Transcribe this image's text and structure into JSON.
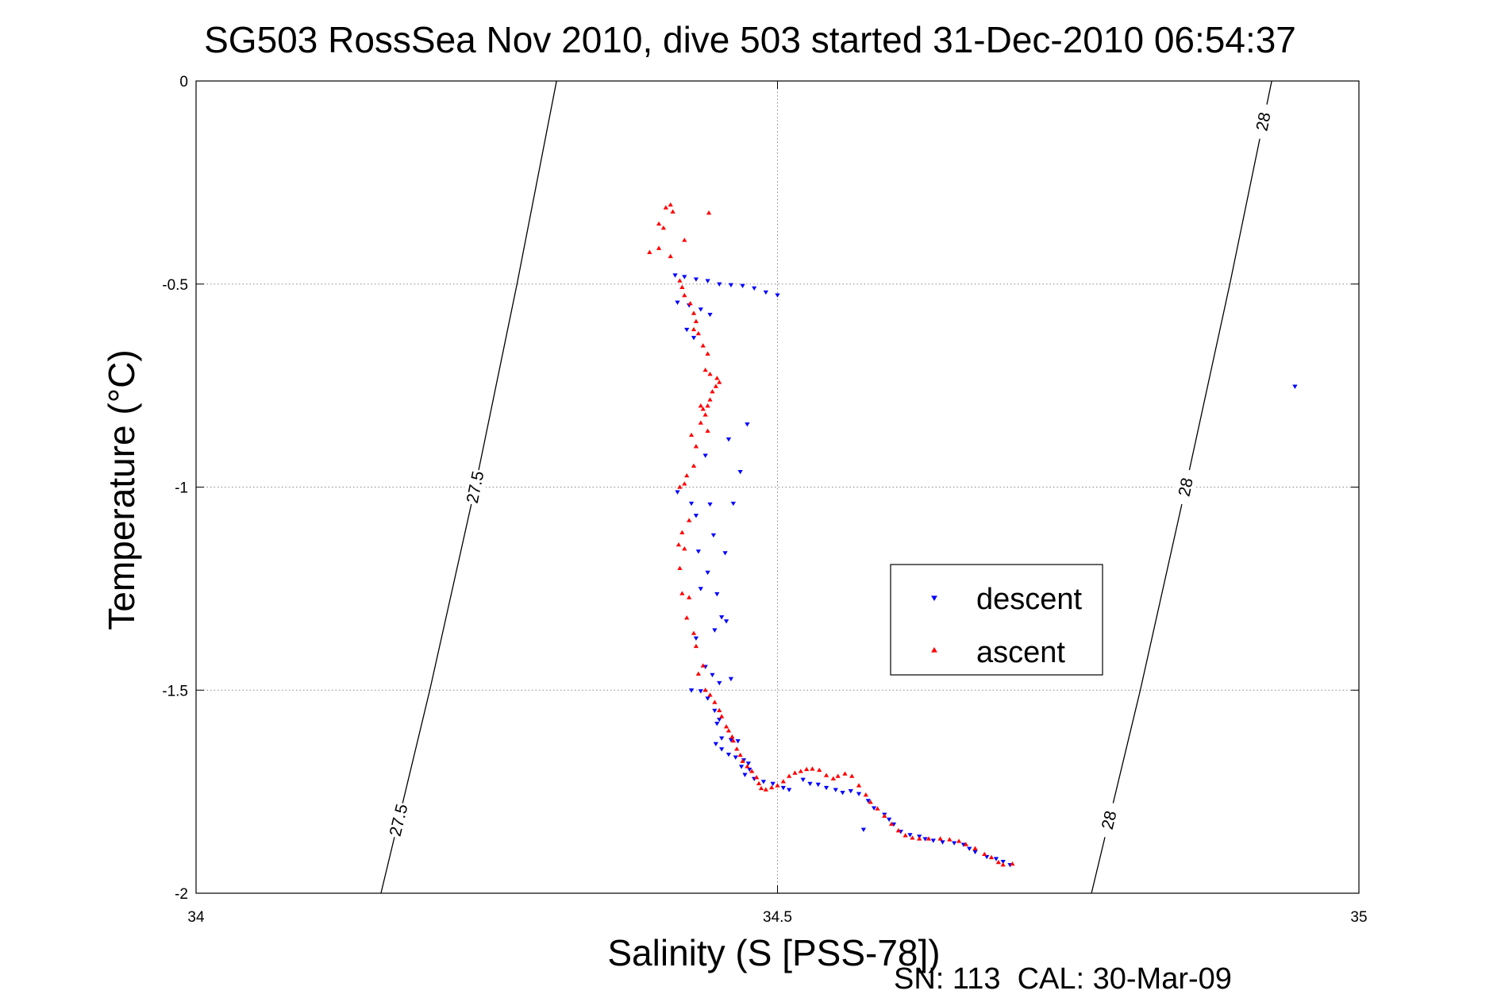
{
  "chart_data": {
    "type": "scatter",
    "title": "SG503 RossSea Nov 2010, dive 503 started 31-Dec-2010 06:54:37",
    "xlabel": "Salinity (S [PSS-78])",
    "ylabel": "Temperature (°C)",
    "xlim": [
      34,
      35
    ],
    "ylim": [
      -2,
      0
    ],
    "xticks": [
      34,
      34.5,
      35
    ],
    "xtick_labels": [
      "34",
      "34.5",
      "35"
    ],
    "yticks": [
      0,
      -0.5,
      -1,
      -1.5,
      -2
    ],
    "ytick_labels": [
      "0",
      "-0.5",
      "-1",
      "-1.5",
      "-2"
    ],
    "grid": true,
    "legend_position": "center-right",
    "footer": "SN: 113  CAL: 30-Mar-09",
    "density_contours": [
      {
        "value": 27.5,
        "points": [
          [
            34.159,
            -2.0
          ],
          [
            34.201,
            -1.5
          ],
          [
            34.24,
            -1.0
          ],
          [
            34.276,
            -0.5
          ],
          [
            34.31,
            0.0
          ]
        ],
        "labels": [
          "27.5",
          "27.5"
        ]
      },
      {
        "value": 28,
        "points": [
          [
            34.77,
            -2.0
          ],
          [
            34.812,
            -1.5
          ],
          [
            34.851,
            -1.0
          ],
          [
            34.889,
            -0.5
          ],
          [
            34.925,
            0.0
          ]
        ],
        "labels": [
          "28",
          "28",
          "28"
        ]
      }
    ],
    "series": [
      {
        "name": "descent",
        "color": "#0000ff",
        "marker": "triangle-down",
        "points": [
          [
            34.412,
            -0.478
          ],
          [
            34.42,
            -0.482
          ],
          [
            34.43,
            -0.488
          ],
          [
            34.44,
            -0.492
          ],
          [
            34.45,
            -0.5
          ],
          [
            34.46,
            -0.502
          ],
          [
            34.47,
            -0.504
          ],
          [
            34.48,
            -0.51
          ],
          [
            34.49,
            -0.52
          ],
          [
            34.5,
            -0.527
          ],
          [
            34.414,
            -0.545
          ],
          [
            34.424,
            -0.552
          ],
          [
            34.434,
            -0.562
          ],
          [
            34.442,
            -0.575
          ],
          [
            34.422,
            -0.612
          ],
          [
            34.428,
            -0.632
          ],
          [
            34.945,
            -0.752
          ],
          [
            34.474,
            -0.845
          ],
          [
            34.458,
            -0.882
          ],
          [
            34.438,
            -0.922
          ],
          [
            34.468,
            -0.962
          ],
          [
            34.414,
            -1.012
          ],
          [
            34.426,
            -1.04
          ],
          [
            34.442,
            -1.042
          ],
          [
            34.462,
            -1.04
          ],
          [
            34.43,
            -1.07
          ],
          [
            34.445,
            -1.118
          ],
          [
            34.432,
            -1.158
          ],
          [
            34.455,
            -1.162
          ],
          [
            34.44,
            -1.21
          ],
          [
            34.434,
            -1.25
          ],
          [
            34.448,
            -1.263
          ],
          [
            34.452,
            -1.32
          ],
          [
            34.456,
            -1.33
          ],
          [
            34.446,
            -1.352
          ],
          [
            34.43,
            -1.372
          ],
          [
            34.438,
            -1.442
          ],
          [
            34.444,
            -1.462
          ],
          [
            34.46,
            -1.472
          ],
          [
            34.45,
            -1.482
          ],
          [
            34.426,
            -1.5
          ],
          [
            34.434,
            -1.502
          ],
          [
            34.44,
            -1.52
          ],
          [
            34.446,
            -1.55
          ],
          [
            34.45,
            -1.572
          ],
          [
            34.448,
            -1.582
          ],
          [
            34.452,
            -1.618
          ],
          [
            34.46,
            -1.622
          ],
          [
            34.466,
            -1.625
          ],
          [
            34.447,
            -1.632
          ],
          [
            34.452,
            -1.645
          ],
          [
            34.458,
            -1.658
          ],
          [
            34.464,
            -1.665
          ],
          [
            34.471,
            -1.672
          ],
          [
            34.475,
            -1.68
          ],
          [
            34.469,
            -1.688
          ],
          [
            34.476,
            -1.695
          ],
          [
            34.472,
            -1.708
          ],
          [
            34.48,
            -1.718
          ],
          [
            34.488,
            -1.725
          ],
          [
            34.496,
            -1.73
          ],
          [
            34.505,
            -1.74
          ],
          [
            34.51,
            -1.745
          ],
          [
            34.522,
            -1.72
          ],
          [
            34.528,
            -1.73
          ],
          [
            34.535,
            -1.732
          ],
          [
            34.542,
            -1.74
          ],
          [
            34.55,
            -1.745
          ],
          [
            34.556,
            -1.752
          ],
          [
            34.563,
            -1.748
          ],
          [
            34.57,
            -1.755
          ],
          [
            34.578,
            -1.772
          ],
          [
            34.583,
            -1.79
          ],
          [
            34.592,
            -1.806
          ],
          [
            34.596,
            -1.818
          ],
          [
            34.6,
            -1.83
          ],
          [
            34.606,
            -1.848
          ],
          [
            34.614,
            -1.856
          ],
          [
            34.622,
            -1.86
          ],
          [
            34.627,
            -1.866
          ],
          [
            34.634,
            -1.87
          ],
          [
            34.642,
            -1.874
          ],
          [
            34.652,
            -1.876
          ],
          [
            34.66,
            -1.88
          ],
          [
            34.665,
            -1.89
          ],
          [
            34.67,
            -1.898
          ],
          [
            34.68,
            -1.91
          ],
          [
            34.688,
            -1.915
          ],
          [
            34.694,
            -1.922
          ],
          [
            34.7,
            -1.93
          ],
          [
            34.574,
            -1.843
          ]
        ]
      },
      {
        "name": "ascent",
        "color": "#ff0000",
        "marker": "triangle-up",
        "points": [
          [
            34.404,
            -0.312
          ],
          [
            34.408,
            -0.305
          ],
          [
            34.41,
            -0.322
          ],
          [
            34.398,
            -0.352
          ],
          [
            34.402,
            -0.362
          ],
          [
            34.441,
            -0.325
          ],
          [
            34.42,
            -0.392
          ],
          [
            34.398,
            -0.412
          ],
          [
            34.39,
            -0.422
          ],
          [
            34.408,
            -0.432
          ],
          [
            34.416,
            -0.492
          ],
          [
            34.418,
            -0.508
          ],
          [
            34.42,
            -0.528
          ],
          [
            34.425,
            -0.548
          ],
          [
            34.428,
            -0.572
          ],
          [
            34.43,
            -0.592
          ],
          [
            34.428,
            -0.612
          ],
          [
            34.432,
            -0.622
          ],
          [
            34.436,
            -0.652
          ],
          [
            34.44,
            -0.672
          ],
          [
            34.438,
            -0.712
          ],
          [
            34.442,
            -0.722
          ],
          [
            34.448,
            -0.732
          ],
          [
            34.45,
            -0.742
          ],
          [
            34.447,
            -0.752
          ],
          [
            34.444,
            -0.765
          ],
          [
            34.442,
            -0.785
          ],
          [
            34.44,
            -0.8
          ],
          [
            34.436,
            -0.808
          ],
          [
            34.434,
            -0.8
          ],
          [
            34.438,
            -0.822
          ],
          [
            34.434,
            -0.842
          ],
          [
            34.44,
            -0.862
          ],
          [
            34.426,
            -0.872
          ],
          [
            34.43,
            -0.9
          ],
          [
            34.428,
            -0.948
          ],
          [
            34.422,
            -0.972
          ],
          [
            34.42,
            -0.992
          ],
          [
            34.416,
            -1.0
          ],
          [
            34.424,
            -1.082
          ],
          [
            34.418,
            -1.112
          ],
          [
            34.415,
            -1.142
          ],
          [
            34.42,
            -1.152
          ],
          [
            34.416,
            -1.2
          ],
          [
            34.418,
            -1.262
          ],
          [
            34.424,
            -1.272
          ],
          [
            34.422,
            -1.322
          ],
          [
            34.428,
            -1.36
          ],
          [
            34.43,
            -1.392
          ],
          [
            34.436,
            -1.44
          ],
          [
            34.432,
            -1.46
          ],
          [
            34.438,
            -1.5
          ],
          [
            34.442,
            -1.512
          ],
          [
            34.446,
            -1.53
          ],
          [
            34.45,
            -1.55
          ],
          [
            34.452,
            -1.565
          ],
          [
            34.456,
            -1.59
          ],
          [
            34.458,
            -1.6
          ],
          [
            34.461,
            -1.615
          ],
          [
            34.462,
            -1.625
          ],
          [
            34.465,
            -1.645
          ],
          [
            34.468,
            -1.66
          ],
          [
            34.47,
            -1.675
          ],
          [
            34.474,
            -1.688
          ],
          [
            34.478,
            -1.7
          ],
          [
            34.482,
            -1.715
          ],
          [
            34.484,
            -1.73
          ],
          [
            34.486,
            -1.742
          ],
          [
            34.49,
            -1.745
          ],
          [
            34.495,
            -1.74
          ],
          [
            34.5,
            -1.735
          ],
          [
            34.505,
            -1.725
          ],
          [
            34.51,
            -1.712
          ],
          [
            34.515,
            -1.704
          ],
          [
            34.52,
            -1.7
          ],
          [
            34.525,
            -1.695
          ],
          [
            34.53,
            -1.694
          ],
          [
            34.536,
            -1.697
          ],
          [
            34.542,
            -1.71
          ],
          [
            34.548,
            -1.718
          ],
          [
            34.552,
            -1.712
          ],
          [
            34.558,
            -1.706
          ],
          [
            34.564,
            -1.712
          ],
          [
            34.57,
            -1.735
          ],
          [
            34.576,
            -1.758
          ],
          [
            34.58,
            -1.776
          ],
          [
            34.586,
            -1.792
          ],
          [
            34.592,
            -1.81
          ],
          [
            34.598,
            -1.83
          ],
          [
            34.604,
            -1.846
          ],
          [
            34.61,
            -1.858
          ],
          [
            34.616,
            -1.864
          ],
          [
            34.622,
            -1.866
          ],
          [
            34.63,
            -1.866
          ],
          [
            34.64,
            -1.866
          ],
          [
            34.648,
            -1.868
          ],
          [
            34.656,
            -1.872
          ],
          [
            34.662,
            -1.88
          ],
          [
            34.67,
            -1.89
          ],
          [
            34.678,
            -1.904
          ],
          [
            34.684,
            -1.912
          ],
          [
            34.69,
            -1.924
          ],
          [
            34.694,
            -1.93
          ],
          [
            34.702,
            -1.928
          ]
        ]
      }
    ]
  }
}
